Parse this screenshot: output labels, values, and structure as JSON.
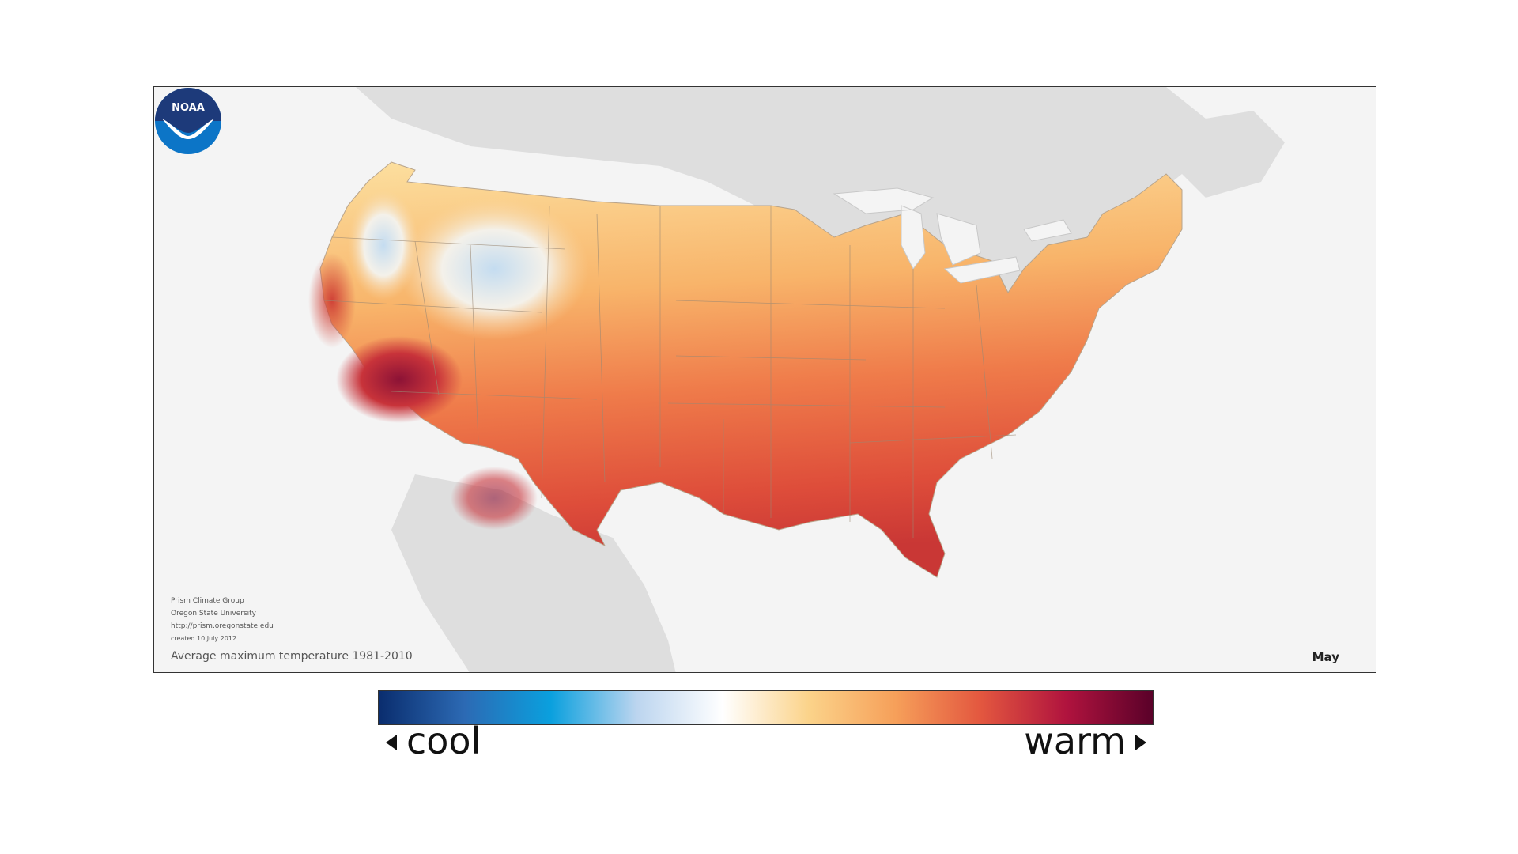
{
  "map": {
    "caption": "Average maximum temperature 1981-2010",
    "month": "May",
    "credits": {
      "line1": "Prism Climate Group",
      "line2": "Oregon State University",
      "line3": "http://prism.oregonstate.edu",
      "line4": "created 10 July 2012"
    },
    "logo": {
      "text": "NOAA",
      "icon": "noaa-logo-icon"
    },
    "colors": {
      "ocean": "#f4f4f4",
      "land_outside": "#dedede",
      "north": "#fbd48a",
      "mid": "#f6a55c",
      "south": "#e2583e",
      "hot": "#9b1a3a",
      "cool": "#b9d6ee"
    }
  },
  "legend": {
    "cool_label": "cool",
    "warm_label": "warm",
    "colors": [
      "#0a2d6e",
      "#2c6ab4",
      "#0aa0de",
      "#bcd5ef",
      "#ffffff",
      "#fbd38a",
      "#f6a05a",
      "#e3573f",
      "#b0133e",
      "#5a0129"
    ]
  }
}
